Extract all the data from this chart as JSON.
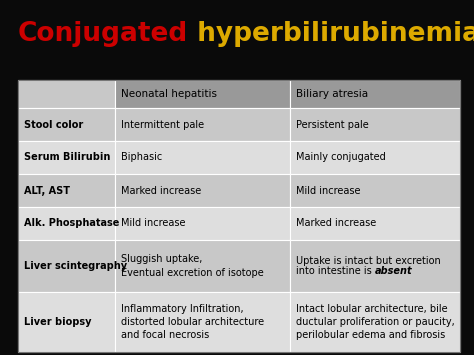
{
  "title_part1": "Conjugated",
  "title_part2": " hyperbilirubinemia",
  "title_color1": "#cc0000",
  "title_color2": "#ddaa00",
  "bg_color": "#0a0a0a",
  "header_bg": "#999999",
  "row0_bg": "#c8c8c8",
  "row1_bg": "#dedede",
  "col_header_row_bg": "#999999",
  "col0_row0_bg": "#c8c8c8",
  "col0_row1_bg": "#dedede",
  "col_headers": [
    "",
    "Neonatal hepatitis",
    "Biliary atresia"
  ],
  "rows": [
    {
      "col0": "Stool color",
      "col1": "Intermittent pale",
      "col2": "Persistent pale",
      "col2_parts": [
        {
          "text": "Persistent pale",
          "italic": false
        }
      ],
      "tall": false
    },
    {
      "col0": "Serum Bilirubin",
      "col1": "Biphasic",
      "col2": "Mainly conjugated",
      "col2_parts": [
        {
          "text": "Mainly conjugated",
          "italic": false
        }
      ],
      "tall": false
    },
    {
      "col0": "ALT, AST",
      "col1": "Marked increase",
      "col2": "Mild increase",
      "col2_parts": [
        {
          "text": "Mild increase",
          "italic": false
        }
      ],
      "tall": false
    },
    {
      "col0": "Alk. Phosphatase",
      "col1": "Mild increase",
      "col2": "Marked increase",
      "col2_parts": [
        {
          "text": "Marked increase",
          "italic": false
        }
      ],
      "tall": false
    },
    {
      "col0": "Liver scintegraphy",
      "col1": "Sluggish uptake,\nEventual excretion of isotope",
      "col2": "Uptake is intact but excretion\ninto intestine is absent",
      "col2_parts": [
        {
          "text": "Uptake is intact but excretion\ninto intestine is ",
          "italic": false
        },
        {
          "text": "absent",
          "italic": true
        }
      ],
      "tall": true
    },
    {
      "col0": "Liver biopsy",
      "col1": "Inflammatory Infiltration,\ndistorted lobular architecture\nand focal necrosis",
      "col2": "Intact lobular architecture, bile\nductular proliferation or paucity,\nperilobular edema and fibrosis",
      "col2_parts": [
        {
          "text": "Intact lobular architecture, bile\nductular proliferation or paucity,\nperilobular edema and fibrosis",
          "italic": false
        }
      ],
      "tall": true
    }
  ],
  "title_fontsize": 19,
  "header_fontsize": 7.5,
  "cell_fontsize": 7.0,
  "col0_fontsize": 7.0
}
